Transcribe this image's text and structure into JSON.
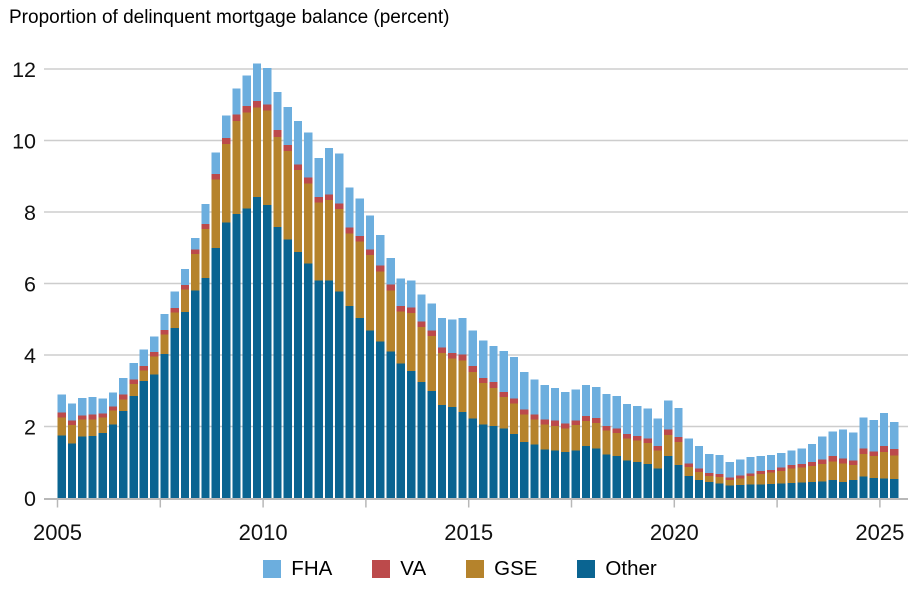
{
  "chart_data": {
    "type": "bar",
    "stacked": true,
    "title": "Proportion of delinquent mortgage balance (percent)",
    "xlabel": "",
    "ylabel": "percent",
    "ylim": [
      0,
      12
    ],
    "yticks": [
      0,
      2,
      4,
      6,
      8,
      10,
      12
    ],
    "xtick_labels": [
      "2005",
      "2010",
      "2015",
      "2020",
      "2025"
    ],
    "grid": true,
    "legend_position": "bottom",
    "frequency": "quarterly",
    "stack_order_bottom_to_top": [
      "Other",
      "GSE",
      "VA",
      "FHA"
    ],
    "categories": [
      "2005 Q1",
      "2005 Q2",
      "2005 Q3",
      "2005 Q4",
      "2006 Q1",
      "2006 Q2",
      "2006 Q3",
      "2006 Q4",
      "2007 Q1",
      "2007 Q2",
      "2007 Q3",
      "2007 Q4",
      "2008 Q1",
      "2008 Q2",
      "2008 Q3",
      "2008 Q4",
      "2009 Q1",
      "2009 Q2",
      "2009 Q3",
      "2009 Q4",
      "2010 Q1",
      "2010 Q2",
      "2010 Q3",
      "2010 Q4",
      "2011 Q1",
      "2011 Q2",
      "2011 Q3",
      "2011 Q4",
      "2012 Q1",
      "2012 Q2",
      "2012 Q3",
      "2012 Q4",
      "2013 Q1",
      "2013 Q2",
      "2013 Q3",
      "2013 Q4",
      "2014 Q1",
      "2014 Q2",
      "2014 Q3",
      "2014 Q4",
      "2015 Q1",
      "2015 Q2",
      "2015 Q3",
      "2015 Q4",
      "2016 Q1",
      "2016 Q2",
      "2016 Q3",
      "2016 Q4",
      "2017 Q1",
      "2017 Q2",
      "2017 Q3",
      "2017 Q4",
      "2018 Q1",
      "2018 Q2",
      "2018 Q3",
      "2018 Q4",
      "2019 Q1",
      "2019 Q2",
      "2019 Q3",
      "2019 Q4",
      "2020 Q1",
      "2020 Q2",
      "2020 Q3",
      "2020 Q4",
      "2021 Q1",
      "2021 Q2",
      "2021 Q3",
      "2021 Q4",
      "2022 Q1",
      "2022 Q2",
      "2022 Q3",
      "2022 Q4",
      "2023 Q1",
      "2023 Q2",
      "2023 Q3",
      "2023 Q4",
      "2024 Q1",
      "2024 Q2",
      "2024 Q3",
      "2024 Q4",
      "2025 Q1",
      "2025 Q2"
    ],
    "series": [
      {
        "name": "FHA",
        "color": "#6CAEDE",
        "values": [
          0.51,
          0.48,
          0.49,
          0.49,
          0.41,
          0.39,
          0.46,
          0.47,
          0.46,
          0.44,
          0.44,
          0.46,
          0.44,
          0.32,
          0.55,
          0.6,
          0.63,
          0.72,
          0.86,
          1.05,
          1.02,
          1.06,
          1.07,
          1.21,
          1.26,
          1.09,
          1.3,
          1.4,
          1.12,
          1.05,
          0.95,
          0.84,
          0.75,
          0.77,
          0.76,
          0.75,
          0.75,
          0.83,
          0.94,
          1.02,
          1.0,
          1.05,
          1.0,
          1.14,
          1.15,
          1.05,
          0.98,
          0.96,
          0.91,
          0.89,
          0.87,
          0.87,
          0.86,
          0.9,
          0.91,
          0.84,
          0.84,
          0.84,
          0.77,
          0.81,
          0.82,
          0.69,
          0.63,
          0.53,
          0.53,
          0.43,
          0.44,
          0.46,
          0.42,
          0.42,
          0.41,
          0.4,
          0.43,
          0.5,
          0.64,
          0.69,
          0.82,
          0.78,
          0.86,
          0.88,
          0.93,
          0.75
        ]
      },
      {
        "name": "VA",
        "color": "#BC4A4B",
        "values": [
          0.14,
          0.13,
          0.12,
          0.13,
          0.12,
          0.11,
          0.14,
          0.12,
          0.13,
          0.12,
          0.12,
          0.12,
          0.13,
          0.12,
          0.14,
          0.15,
          0.17,
          0.18,
          0.18,
          0.17,
          0.17,
          0.19,
          0.17,
          0.16,
          0.16,
          0.15,
          0.16,
          0.16,
          0.16,
          0.16,
          0.15,
          0.17,
          0.16,
          0.15,
          0.16,
          0.15,
          0.16,
          0.16,
          0.16,
          0.16,
          0.16,
          0.14,
          0.17,
          0.15,
          0.15,
          0.14,
          0.14,
          0.14,
          0.16,
          0.14,
          0.13,
          0.14,
          0.14,
          0.12,
          0.12,
          0.13,
          0.12,
          0.12,
          0.12,
          0.16,
          0.13,
          0.1,
          0.09,
          0.09,
          0.08,
          0.07,
          0.08,
          0.06,
          0.08,
          0.07,
          0.09,
          0.1,
          0.1,
          0.11,
          0.13,
          0.15,
          0.14,
          0.12,
          0.16,
          0.13,
          0.16,
          0.18
        ]
      },
      {
        "name": "GSE",
        "color": "#B5832C",
        "values": [
          0.5,
          0.52,
          0.47,
          0.46,
          0.43,
          0.4,
          0.33,
          0.34,
          0.29,
          0.51,
          0.55,
          0.44,
          0.63,
          1.03,
          1.38,
          1.91,
          2.2,
          2.6,
          2.68,
          2.51,
          2.65,
          2.52,
          2.47,
          2.29,
          2.24,
          2.18,
          2.24,
          2.31,
          2.03,
          2.13,
          2.12,
          1.96,
          1.71,
          1.46,
          1.62,
          1.54,
          1.53,
          1.45,
          1.35,
          1.45,
          1.31,
          1.16,
          1.07,
          0.88,
          0.85,
          0.77,
          0.7,
          0.7,
          0.68,
          0.65,
          0.71,
          0.7,
          0.72,
          0.68,
          0.65,
          0.61,
          0.6,
          0.59,
          0.51,
          0.59,
          0.65,
          0.25,
          0.22,
          0.16,
          0.19,
          0.16,
          0.19,
          0.24,
          0.29,
          0.32,
          0.36,
          0.41,
          0.42,
          0.45,
          0.49,
          0.52,
          0.51,
          0.43,
          0.63,
          0.61,
          0.74,
          0.66
        ]
      },
      {
        "name": "Other",
        "color": "#0A6491",
        "values": [
          1.75,
          1.52,
          1.72,
          1.74,
          1.82,
          2.05,
          2.43,
          2.85,
          3.27,
          3.45,
          4.03,
          4.75,
          5.2,
          5.8,
          6.15,
          7.0,
          7.7,
          7.95,
          8.1,
          8.42,
          8.19,
          7.58,
          7.23,
          6.88,
          6.56,
          6.09,
          6.09,
          5.77,
          5.37,
          5.04,
          4.68,
          4.38,
          4.1,
          3.76,
          3.55,
          3.25,
          3.0,
          2.6,
          2.55,
          2.4,
          2.22,
          2.06,
          2.01,
          1.94,
          1.79,
          1.57,
          1.5,
          1.36,
          1.33,
          1.29,
          1.33,
          1.45,
          1.38,
          1.21,
          1.17,
          1.05,
          1.01,
          0.95,
          0.82,
          1.17,
          0.92,
          0.62,
          0.51,
          0.45,
          0.4,
          0.35,
          0.36,
          0.38,
          0.38,
          0.39,
          0.4,
          0.42,
          0.43,
          0.45,
          0.46,
          0.5,
          0.45,
          0.5,
          0.6,
          0.56,
          0.55,
          0.53
        ]
      }
    ],
    "colors": {
      "fha": "#6CAEDE",
      "va": "#BC4A4B",
      "gse": "#B5832C",
      "other": "#0A6491",
      "gridline": "#CDCDCD",
      "axis": "#B8B8B8",
      "text": "#111111"
    }
  }
}
